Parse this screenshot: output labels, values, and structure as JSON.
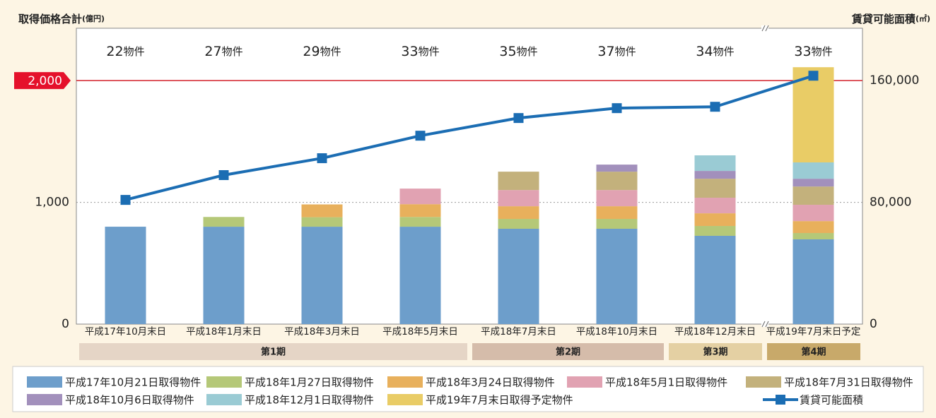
{
  "chart_data": {
    "type": "bar",
    "stacked": true,
    "y_label": "取得価格合計",
    "y_unit": "(億円)",
    "y2_label": "賃貸可能面積",
    "y2_unit": "(㎡)",
    "categories": [
      "平成17年10月末日",
      "平成18年1月末日",
      "平成18年3月末日",
      "平成18年5月末日",
      "平成18年7月末日",
      "平成18年10月末日",
      "平成18年12月末日",
      "平成19年7月末日予定"
    ],
    "counts": [
      22,
      27,
      29,
      33,
      35,
      37,
      34,
      33
    ],
    "count_unit": "物件",
    "periods": [
      {
        "label": "第1期",
        "span": [
          0,
          3
        ],
        "color": "#e5d5c6"
      },
      {
        "label": "第2期",
        "span": [
          4,
          5
        ],
        "color": "#d5bcaa"
      },
      {
        "label": "第3期",
        "span": [
          6,
          6
        ],
        "color": "#e4d0a3"
      },
      {
        "label": "第4期",
        "span": [
          7,
          7
        ],
        "color": "#c8a96a"
      }
    ],
    "series": [
      {
        "name": "平成17年10月21日取得物件",
        "color": "#6d9ecb",
        "values": [
          800,
          800,
          800,
          800,
          783,
          783,
          725,
          696
        ]
      },
      {
        "name": "平成18年1月27日取得物件",
        "color": "#b5c878",
        "values": [
          null,
          80,
          78,
          80,
          81,
          81,
          81,
          52
        ]
      },
      {
        "name": "平成18年3月24日取得物件",
        "color": "#e8b05c",
        "values": [
          null,
          null,
          105,
          105,
          104,
          104,
          104,
          98
        ]
      },
      {
        "name": "平成18年5月1日取得物件",
        "color": "#e1a2b2",
        "values": [
          null,
          null,
          null,
          128,
          133,
          133,
          128,
          134
        ]
      },
      {
        "name": "平成18年7月31日取得物件",
        "color": "#c3b17c",
        "values": [
          null,
          null,
          null,
          null,
          151,
          151,
          156,
          150
        ]
      },
      {
        "name": "平成18年10月6日取得物件",
        "color": "#a290bc",
        "values": [
          null,
          null,
          null,
          null,
          null,
          58,
          64,
          64
        ]
      },
      {
        "name": "平成18年12月1日取得物件",
        "color": "#9acbd4",
        "values": [
          null,
          null,
          null,
          null,
          null,
          null,
          128,
          134
        ]
      },
      {
        "name": "平成19年7月末日取得予定物件",
        "color": "#e9cc66",
        "values": [
          null,
          null,
          null,
          null,
          null,
          null,
          null,
          782
        ]
      },
      {
        "name": "賃貸可能面積",
        "type": "line",
        "axis": "y2",
        "color": "#1b6db3",
        "values": [
          81600,
          97900,
          109000,
          123800,
          135400,
          141900,
          142800,
          163200
        ]
      }
    ],
    "ylim": [
      0,
      2430
    ],
    "yticks": [
      0,
      {
        "value": 1000,
        "label": "1,000"
      },
      {
        "value": 2000,
        "label": "2,000"
      }
    ],
    "y2lim": [
      0,
      194400
    ],
    "y2ticks": [
      0,
      {
        "value": 80000,
        "label": "80,000"
      },
      {
        "value": 160000,
        "label": "160,000"
      }
    ],
    "highlight_tick": 2
  }
}
